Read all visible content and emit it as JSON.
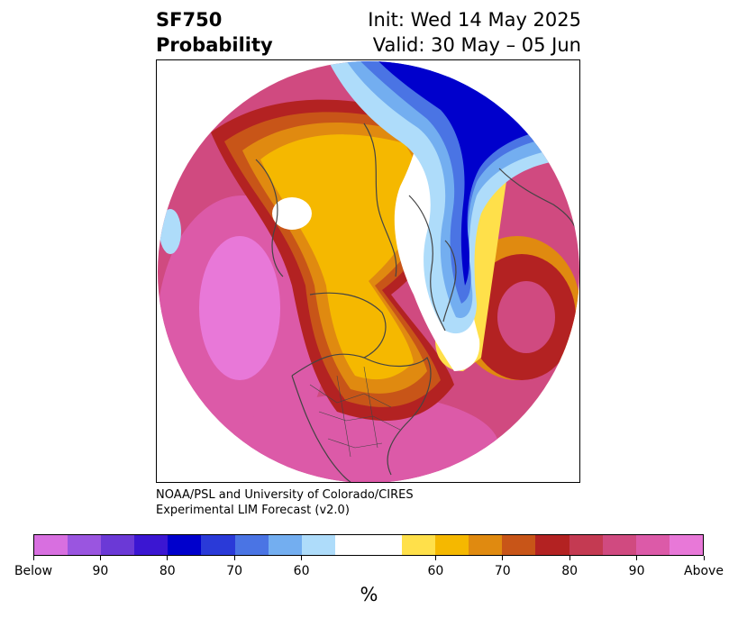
{
  "title": {
    "left_line1": "SF750",
    "left_line2": "Probability",
    "right_line1": "Init: Wed 14 May 2025",
    "right_line2": "Valid: 30 May – 05 Jun"
  },
  "credit": {
    "line1": "NOAA/PSL and University of Colorado/CIRES",
    "line2": "Experimental LIM Forecast (v2.0)"
  },
  "map": {
    "projection": "north polar stereographic",
    "variable": "SF750",
    "coastline_color": "#444444",
    "background_color": "#ffffff"
  },
  "colorbar": {
    "unit": "%",
    "colors": [
      "#d86fe0",
      "#9a55e0",
      "#6b39d6",
      "#3b16d2",
      "#0000cc",
      "#2a3ad8",
      "#4a74e4",
      "#73aef0",
      "#aedcfa",
      "#ffffff",
      "#ffffff",
      "#ffe04a",
      "#f5b800",
      "#e08a10",
      "#c85518",
      "#b32222",
      "#c43a52",
      "#d04a80",
      "#dc5aa8",
      "#e878d8"
    ],
    "tick_labels": [
      "Below",
      "90",
      "80",
      "70",
      "60",
      "60",
      "70",
      "80",
      "90",
      "Above"
    ]
  }
}
